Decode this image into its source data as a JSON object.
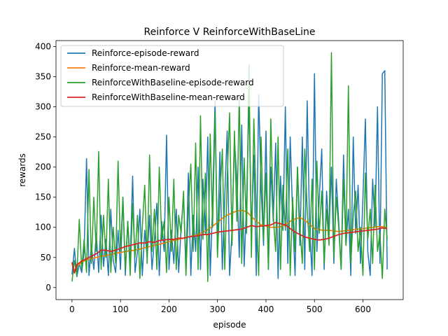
{
  "chart_data": {
    "type": "line",
    "title": "Reinforce V ReinforceWithBaseLine",
    "xlabel": "episode",
    "ylabel": "rewards",
    "xlim": [
      -33,
      683
    ],
    "ylim": [
      -20,
      410
    ],
    "xticks": [
      0,
      100,
      200,
      300,
      400,
      500,
      600
    ],
    "yticks": [
      0,
      50,
      100,
      150,
      200,
      250,
      300,
      350,
      400
    ],
    "grid": false,
    "legend_position": "upper-left",
    "series": [
      {
        "name": "Reinforce-episode-reward",
        "color": "#1f77b4",
        "x": [
          0,
          5,
          10,
          15,
          20,
          25,
          30,
          35,
          40,
          45,
          50,
          55,
          60,
          65,
          70,
          75,
          80,
          85,
          90,
          95,
          100,
          105,
          110,
          115,
          120,
          125,
          130,
          135,
          140,
          145,
          150,
          155,
          160,
          165,
          170,
          175,
          180,
          185,
          190,
          195,
          200,
          205,
          210,
          215,
          220,
          225,
          230,
          235,
          240,
          245,
          250,
          255,
          260,
          265,
          270,
          275,
          280,
          285,
          290,
          295,
          300,
          305,
          310,
          315,
          320,
          325,
          330,
          335,
          340,
          345,
          350,
          355,
          360,
          365,
          370,
          375,
          380,
          385,
          390,
          395,
          400,
          405,
          410,
          415,
          420,
          425,
          430,
          435,
          440,
          445,
          450,
          455,
          460,
          465,
          470,
          475,
          480,
          485,
          490,
          495,
          500,
          505,
          510,
          515,
          520,
          525,
          530,
          535,
          540,
          545,
          550,
          555,
          560,
          565,
          570,
          575,
          580,
          585,
          590,
          595,
          600,
          605,
          610,
          615,
          620,
          625,
          630,
          635,
          640,
          645,
          650
        ],
        "values": [
          22,
          65,
          18,
          40,
          25,
          60,
          214,
          20,
          70,
          30,
          90,
          25,
          120,
          35,
          80,
          20,
          130,
          45,
          25,
          95,
          30,
          150,
          20,
          110,
          40,
          185,
          25,
          60,
          130,
          20,
          95,
          50,
          120,
          30,
          80,
          140,
          20,
          110,
          60,
          253,
          30,
          95,
          40,
          130,
          25,
          100,
          150,
          35,
          190,
          20,
          120,
          60,
          200,
          30,
          180,
          90,
          250,
          20,
          140,
          310,
          60,
          225,
          30,
          150,
          260,
          20,
          95,
          245,
          180,
          50,
          270,
          35,
          140,
          310,
          90,
          220,
          20,
          320,
          165,
          70,
          260,
          30,
          200,
          110,
          240,
          15,
          185,
          95,
          300,
          40,
          250,
          120,
          20,
          200,
          70,
          250,
          30,
          310,
          100,
          20,
          355,
          60,
          150,
          230,
          30,
          160,
          90,
          200,
          40,
          180,
          110,
          30,
          220,
          70,
          130,
          20,
          250,
          90,
          170,
          40,
          150,
          280,
          60,
          20,
          180,
          100,
          300,
          40,
          355,
          360,
          30
        ]
      },
      {
        "name": "Reinforce-mean-reward",
        "color": "#ff7f0e",
        "x": [
          0,
          5,
          10,
          20,
          30,
          40,
          50,
          60,
          70,
          80,
          90,
          100,
          110,
          120,
          130,
          140,
          150,
          160,
          170,
          180,
          190,
          200,
          210,
          220,
          230,
          240,
          250,
          260,
          270,
          280,
          290,
          300,
          310,
          320,
          330,
          340,
          350,
          360,
          370,
          380,
          390,
          400,
          410,
          420,
          430,
          440,
          450,
          460,
          470,
          480,
          490,
          500,
          510,
          520,
          530,
          540,
          550,
          560,
          570,
          580,
          590,
          600,
          610,
          620,
          630,
          640,
          650
        ],
        "values": [
          40,
          28,
          35,
          42,
          46,
          48,
          50,
          52,
          53,
          55,
          57,
          58,
          60,
          61,
          62,
          64,
          66,
          68,
          70,
          72,
          74,
          76,
          78,
          80,
          82,
          84,
          86,
          88,
          92,
          96,
          102,
          108,
          115,
          120,
          124,
          127,
          128,
          126,
          118,
          110,
          104,
          102,
          100,
          100,
          101,
          104,
          110,
          114,
          116,
          112,
          105,
          98,
          96,
          95,
          95,
          94,
          93,
          94,
          95,
          96,
          97,
          98,
          99,
          100,
          101,
          101,
          100
        ]
      },
      {
        "name": "ReinforceWithBaseline-episode-reward",
        "color": "#2ca02c",
        "x": [
          0,
          5,
          10,
          15,
          20,
          25,
          30,
          35,
          40,
          45,
          50,
          55,
          60,
          65,
          70,
          75,
          80,
          85,
          90,
          95,
          100,
          105,
          110,
          115,
          120,
          125,
          130,
          135,
          140,
          145,
          150,
          155,
          160,
          165,
          170,
          175,
          180,
          185,
          190,
          195,
          200,
          205,
          210,
          215,
          220,
          225,
          230,
          235,
          240,
          245,
          250,
          255,
          260,
          265,
          270,
          275,
          280,
          285,
          290,
          295,
          300,
          305,
          310,
          315,
          320,
          325,
          330,
          335,
          340,
          345,
          350,
          355,
          360,
          365,
          370,
          375,
          380,
          385,
          390,
          395,
          400,
          405,
          410,
          415,
          420,
          425,
          430,
          435,
          440,
          445,
          450,
          455,
          460,
          465,
          470,
          475,
          480,
          485,
          490,
          495,
          500,
          505,
          510,
          515,
          520,
          525,
          530,
          535,
          540,
          545,
          550,
          555,
          560,
          565,
          570,
          575,
          580,
          585,
          590,
          595,
          600,
          605,
          610,
          615,
          620,
          625,
          630,
          635,
          640,
          645,
          650
        ],
        "values": [
          10,
          45,
          20,
          113,
          30,
          80,
          25,
          196,
          40,
          150,
          60,
          226,
          30,
          120,
          50,
          180,
          25,
          100,
          40,
          210,
          60,
          150,
          30,
          110,
          20,
          140,
          50,
          120,
          15,
          100,
          170,
          40,
          220,
          60,
          130,
          30,
          200,
          80,
          110,
          25,
          150,
          60,
          180,
          30,
          120,
          90,
          160,
          20,
          130,
          205,
          60,
          240,
          30,
          285,
          80,
          190,
          10,
          255,
          100,
          290,
          50,
          150,
          230,
          30,
          180,
          290,
          70,
          260,
          110,
          320,
          40,
          215,
          90,
          370,
          50,
          280,
          130,
          20,
          250,
          80,
          190,
          30,
          280,
          120,
          60,
          250,
          30,
          170,
          95,
          230,
          20,
          150,
          60,
          200,
          100,
          40,
          230,
          130,
          60,
          180,
          30,
          210,
          90,
          160,
          40,
          130,
          70,
          390,
          50,
          150,
          100,
          30,
          180,
          70,
          335,
          40,
          120,
          160,
          60,
          100,
          20,
          190,
          80,
          130,
          40,
          170,
          60,
          90,
          15,
          130,
          80
        ]
      },
      {
        "name": "ReinforceWithBaseline-mean-reward",
        "color": "#d62728",
        "x": [
          0,
          5,
          10,
          20,
          30,
          40,
          50,
          60,
          70,
          80,
          90,
          100,
          110,
          120,
          130,
          140,
          150,
          160,
          170,
          180,
          190,
          200,
          210,
          220,
          230,
          240,
          250,
          260,
          270,
          280,
          290,
          300,
          310,
          320,
          330,
          340,
          350,
          360,
          370,
          380,
          390,
          400,
          410,
          420,
          430,
          440,
          450,
          460,
          470,
          480,
          490,
          500,
          510,
          520,
          530,
          540,
          550,
          560,
          570,
          580,
          590,
          600,
          610,
          620,
          630,
          640,
          650
        ],
        "values": [
          42,
          24,
          38,
          44,
          48,
          52,
          56,
          62,
          62,
          60,
          62,
          65,
          68,
          70,
          72,
          74,
          74,
          76,
          75,
          78,
          79,
          80,
          80,
          82,
          82,
          84,
          85,
          86,
          88,
          88,
          90,
          92,
          93,
          94,
          95,
          96,
          97,
          100,
          103,
          101,
          102,
          103,
          104,
          108,
          106,
          104,
          98,
          92,
          88,
          84,
          82,
          80,
          79,
          80,
          82,
          85,
          88,
          90,
          91,
          92,
          93,
          94,
          95,
          96,
          97,
          99,
          98
        ]
      }
    ]
  }
}
